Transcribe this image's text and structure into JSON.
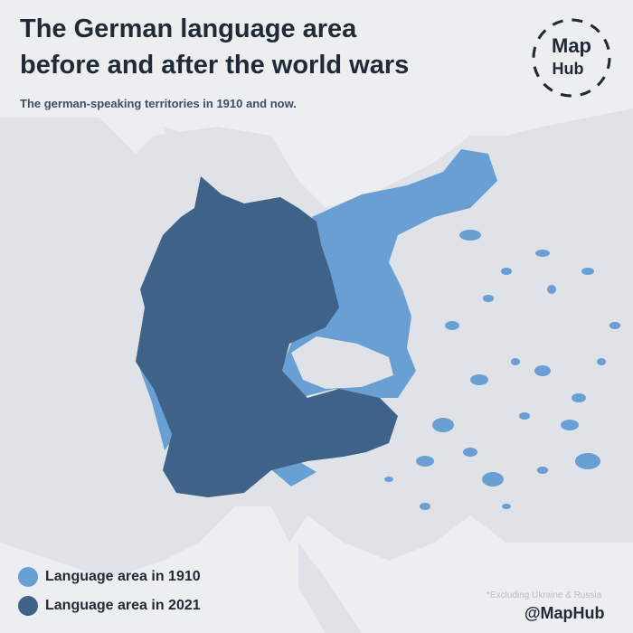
{
  "header": {
    "title_lines": [
      "The German language area",
      "before and after the world wars"
    ],
    "subtitle": "The german-speaking territories in 1910 and now."
  },
  "logo": {
    "top": "Map",
    "bottom": "Hub"
  },
  "legend": {
    "items": [
      {
        "label": "Language area in 1910",
        "color": "#6a9fd4"
      },
      {
        "label": "Language area in 2021",
        "color": "#3f6288"
      }
    ]
  },
  "footnote": "*Excluding Ukraine & Russia",
  "credit": "@MapHub"
}
